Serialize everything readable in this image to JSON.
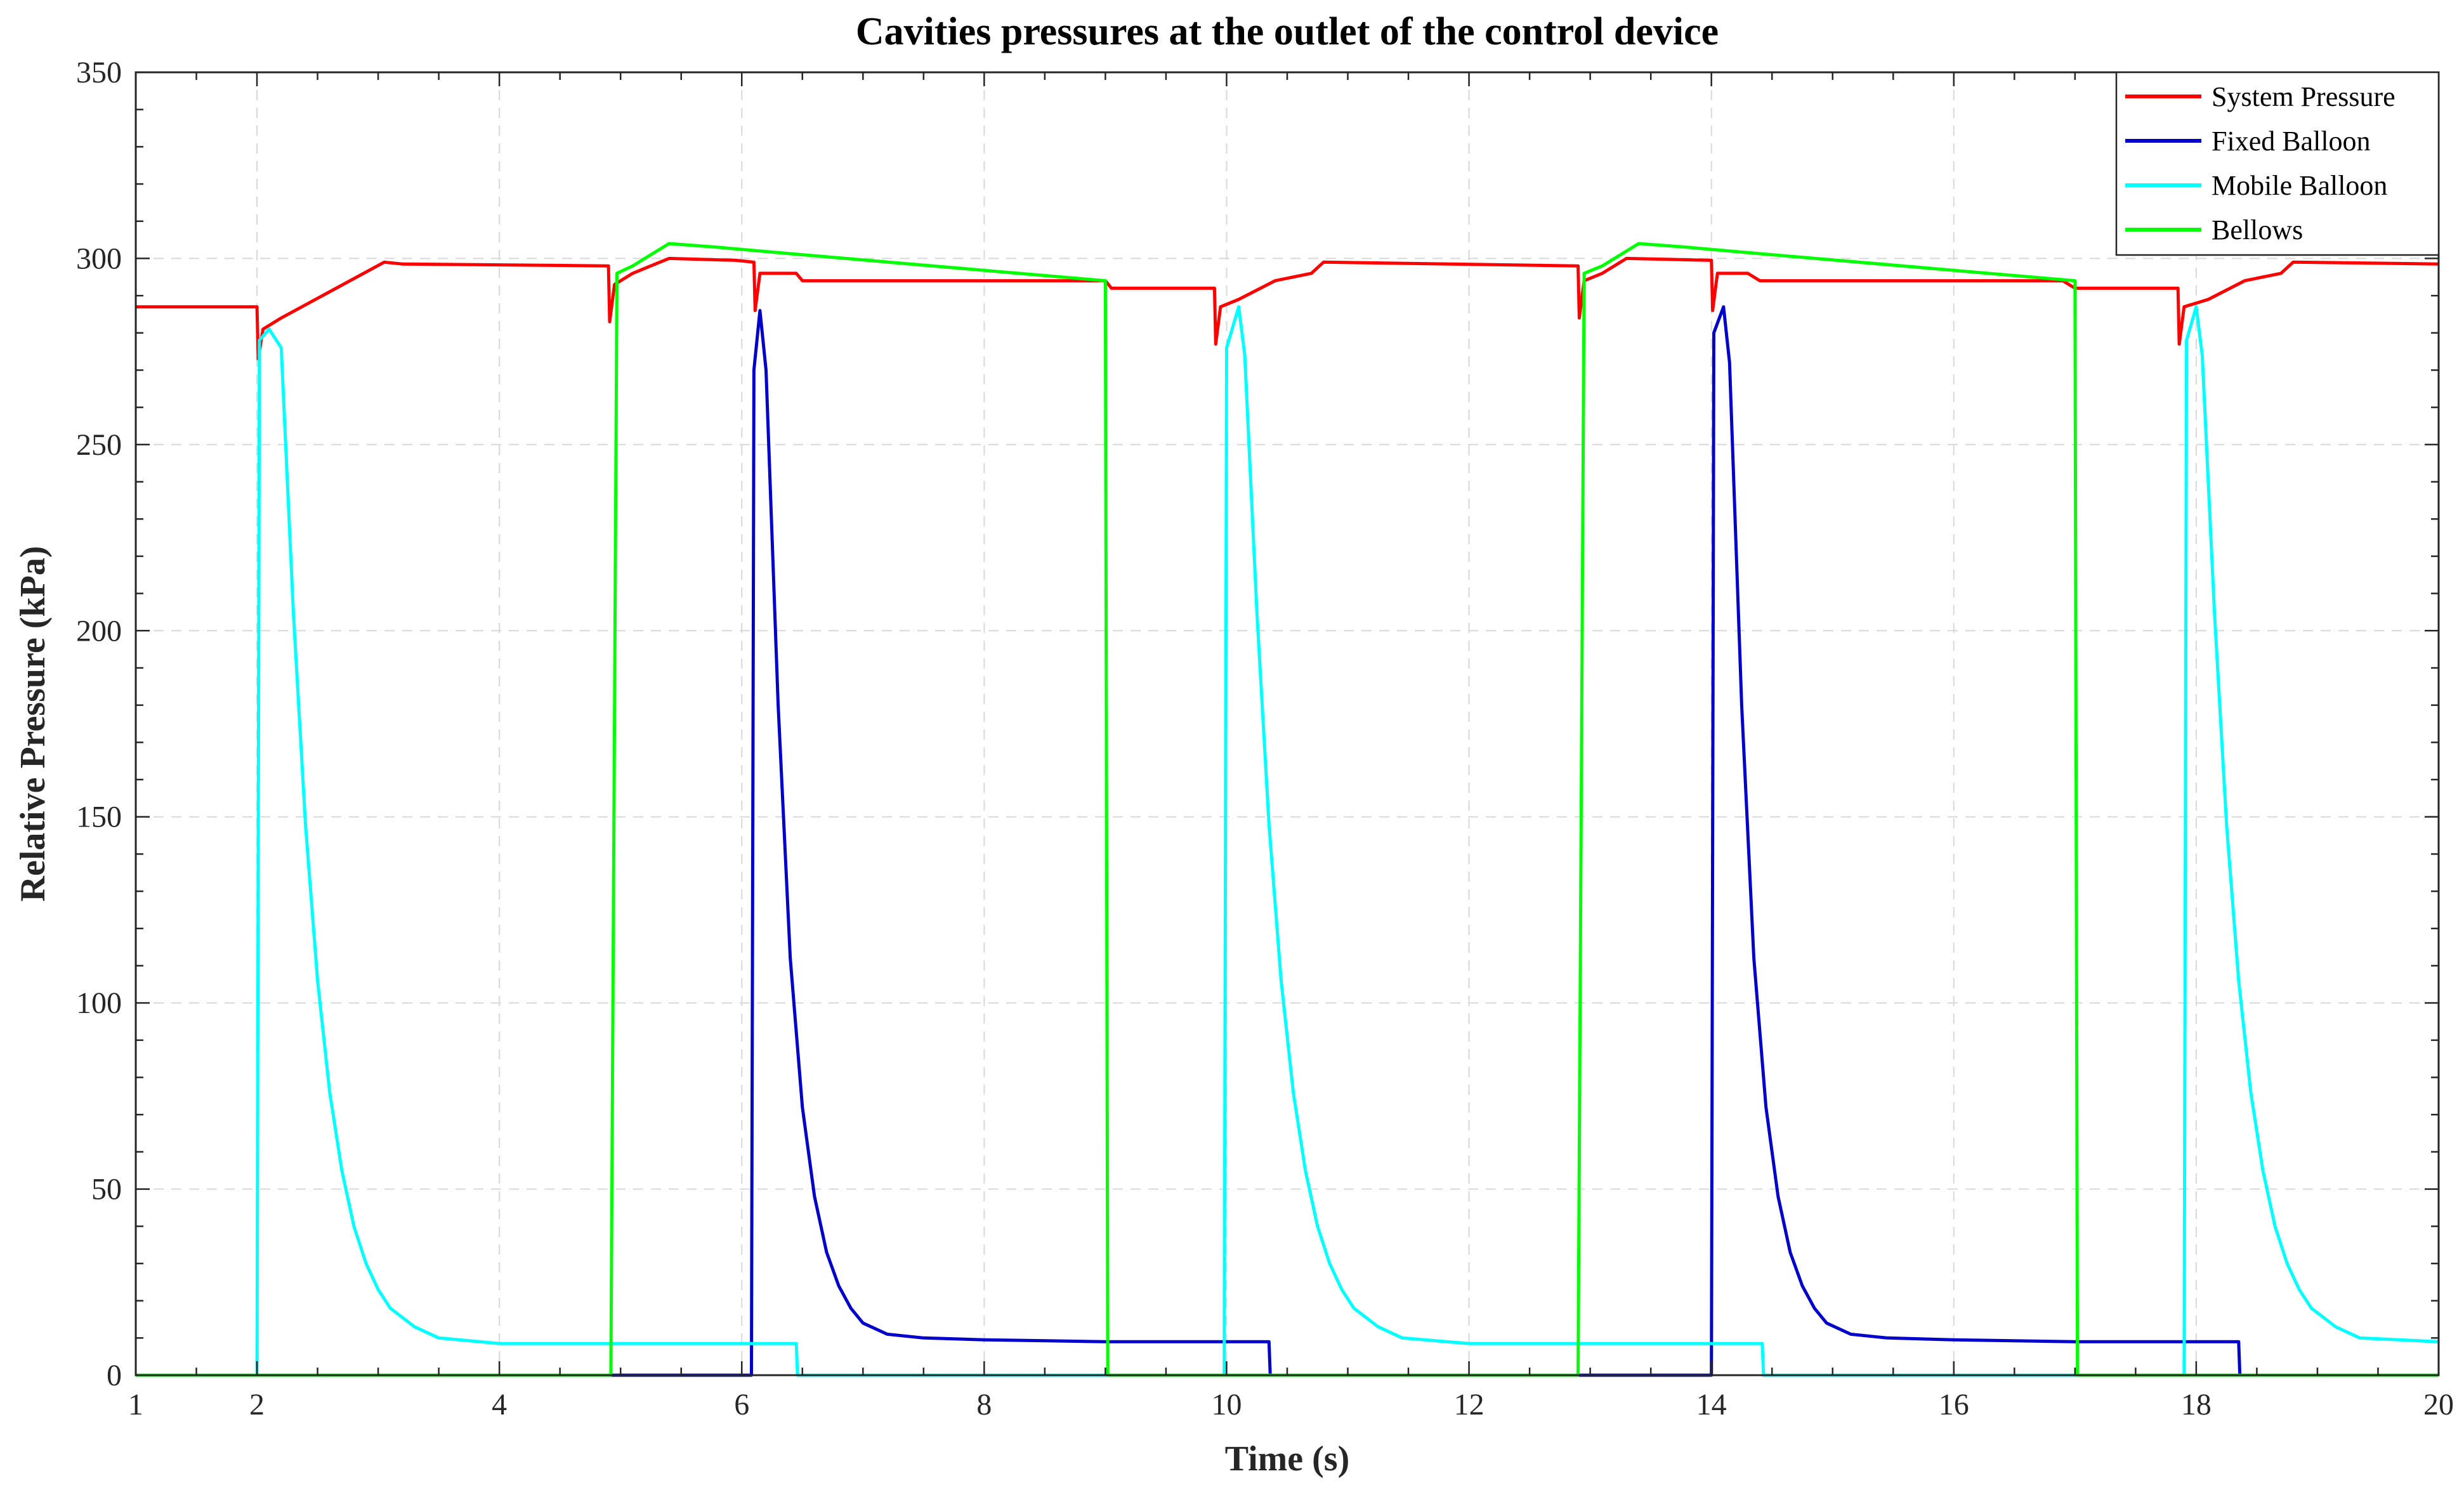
{
  "chart_data": {
    "type": "line",
    "title": "Cavities pressures at the outlet of the control device",
    "xlabel": "Time (s)",
    "ylabel": "Relative Pressure (kPa)",
    "xlim": [
      1,
      20
    ],
    "ylim": [
      0,
      350
    ],
    "xticks": [
      1,
      2,
      4,
      6,
      8,
      10,
      12,
      14,
      16,
      18,
      20
    ],
    "yticks": [
      0,
      50,
      100,
      150,
      200,
      250,
      300,
      350
    ],
    "grid": true,
    "legend_position": "top-right",
    "series": [
      {
        "name": "System Pressure",
        "color": "#ff0000",
        "points": [
          [
            1,
            287
          ],
          [
            2,
            287
          ],
          [
            2.01,
            273
          ],
          [
            2.05,
            281
          ],
          [
            2.2,
            284
          ],
          [
            3.05,
            299
          ],
          [
            3.2,
            298.5
          ],
          [
            4.9,
            298
          ],
          [
            4.91,
            283
          ],
          [
            4.95,
            293
          ],
          [
            5.1,
            296
          ],
          [
            5.4,
            300
          ],
          [
            5.95,
            299.5
          ],
          [
            6.1,
            299
          ],
          [
            6.11,
            286
          ],
          [
            6.15,
            296
          ],
          [
            6.45,
            296
          ],
          [
            6.5,
            294
          ],
          [
            9.0,
            294
          ],
          [
            9.05,
            292
          ],
          [
            9.9,
            292
          ],
          [
            9.91,
            277
          ],
          [
            9.95,
            287
          ],
          [
            10.1,
            289
          ],
          [
            10.4,
            294
          ],
          [
            10.7,
            296
          ],
          [
            10.8,
            299
          ],
          [
            12.9,
            298
          ],
          [
            12.91,
            284
          ],
          [
            12.95,
            294
          ],
          [
            13.1,
            296
          ],
          [
            13.3,
            300
          ],
          [
            14.0,
            299.5
          ],
          [
            14.01,
            286
          ],
          [
            14.05,
            296
          ],
          [
            14.3,
            296
          ],
          [
            14.4,
            294
          ],
          [
            16.9,
            294
          ],
          [
            17.0,
            292
          ],
          [
            17.85,
            292
          ],
          [
            17.86,
            277
          ],
          [
            17.9,
            287
          ],
          [
            18.1,
            289
          ],
          [
            18.4,
            294
          ],
          [
            18.7,
            296
          ],
          [
            18.8,
            299
          ],
          [
            20,
            298.5
          ]
        ]
      },
      {
        "name": "Fixed Balloon",
        "color": "#0000cc",
        "points": [
          [
            1,
            0
          ],
          [
            6.08,
            0
          ],
          [
            6.1,
            270
          ],
          [
            6.15,
            286
          ],
          [
            6.2,
            270
          ],
          [
            6.3,
            180
          ],
          [
            6.4,
            112
          ],
          [
            6.5,
            72
          ],
          [
            6.6,
            48
          ],
          [
            6.7,
            33
          ],
          [
            6.8,
            24
          ],
          [
            6.9,
            18
          ],
          [
            7.0,
            14
          ],
          [
            7.2,
            11
          ],
          [
            7.5,
            10
          ],
          [
            8.0,
            9.5
          ],
          [
            9.0,
            9
          ],
          [
            10.35,
            9
          ],
          [
            10.36,
            0
          ],
          [
            14.0,
            0
          ],
          [
            14.02,
            280
          ],
          [
            14.1,
            287
          ],
          [
            14.15,
            272
          ],
          [
            14.25,
            180
          ],
          [
            14.35,
            112
          ],
          [
            14.45,
            72
          ],
          [
            14.55,
            48
          ],
          [
            14.65,
            33
          ],
          [
            14.75,
            24
          ],
          [
            14.85,
            18
          ],
          [
            14.95,
            14
          ],
          [
            15.15,
            11
          ],
          [
            15.45,
            10
          ],
          [
            16.0,
            9.5
          ],
          [
            17.0,
            9
          ],
          [
            18.35,
            9
          ],
          [
            18.36,
            0
          ],
          [
            20,
            0
          ]
        ]
      },
      {
        "name": "Mobile Balloon",
        "color": "#00ffff",
        "points": [
          [
            1,
            0
          ],
          [
            2.0,
            0
          ],
          [
            2.02,
            278
          ],
          [
            2.1,
            281
          ],
          [
            2.2,
            276
          ],
          [
            2.3,
            205
          ],
          [
            2.4,
            148
          ],
          [
            2.5,
            106
          ],
          [
            2.6,
            76
          ],
          [
            2.7,
            55
          ],
          [
            2.8,
            40
          ],
          [
            2.9,
            30
          ],
          [
            3.0,
            23
          ],
          [
            3.1,
            18
          ],
          [
            3.3,
            13
          ],
          [
            3.5,
            10
          ],
          [
            4.0,
            8.5
          ],
          [
            6.45,
            8.5
          ],
          [
            6.46,
            0
          ],
          [
            9.98,
            0
          ],
          [
            10.0,
            276
          ],
          [
            10.1,
            287
          ],
          [
            10.15,
            274
          ],
          [
            10.25,
            205
          ],
          [
            10.35,
            148
          ],
          [
            10.45,
            106
          ],
          [
            10.55,
            76
          ],
          [
            10.65,
            55
          ],
          [
            10.75,
            40
          ],
          [
            10.85,
            30
          ],
          [
            10.95,
            23
          ],
          [
            11.05,
            18
          ],
          [
            11.25,
            13
          ],
          [
            11.45,
            10
          ],
          [
            12.0,
            8.5
          ],
          [
            14.42,
            8.5
          ],
          [
            14.43,
            0
          ],
          [
            17.9,
            0
          ],
          [
            17.92,
            278
          ],
          [
            18.0,
            287
          ],
          [
            18.05,
            274
          ],
          [
            18.15,
            205
          ],
          [
            18.25,
            148
          ],
          [
            18.35,
            106
          ],
          [
            18.45,
            76
          ],
          [
            18.55,
            55
          ],
          [
            18.65,
            40
          ],
          [
            18.75,
            30
          ],
          [
            18.85,
            23
          ],
          [
            18.95,
            18
          ],
          [
            19.15,
            13
          ],
          [
            19.35,
            10
          ],
          [
            20,
            9
          ]
        ]
      },
      {
        "name": "Bellows",
        "color": "#00ff00",
        "points": [
          [
            1,
            0
          ],
          [
            4.92,
            0
          ],
          [
            4.97,
            296
          ],
          [
            5.1,
            298
          ],
          [
            5.4,
            304
          ],
          [
            5.8,
            303
          ],
          [
            6.5,
            301
          ],
          [
            9.0,
            294
          ],
          [
            9.02,
            0
          ],
          [
            12.9,
            0
          ],
          [
            12.95,
            296
          ],
          [
            13.1,
            298
          ],
          [
            13.4,
            304
          ],
          [
            13.8,
            303
          ],
          [
            14.5,
            301
          ],
          [
            17.0,
            294
          ],
          [
            17.02,
            0
          ],
          [
            20,
            0
          ]
        ]
      }
    ]
  }
}
